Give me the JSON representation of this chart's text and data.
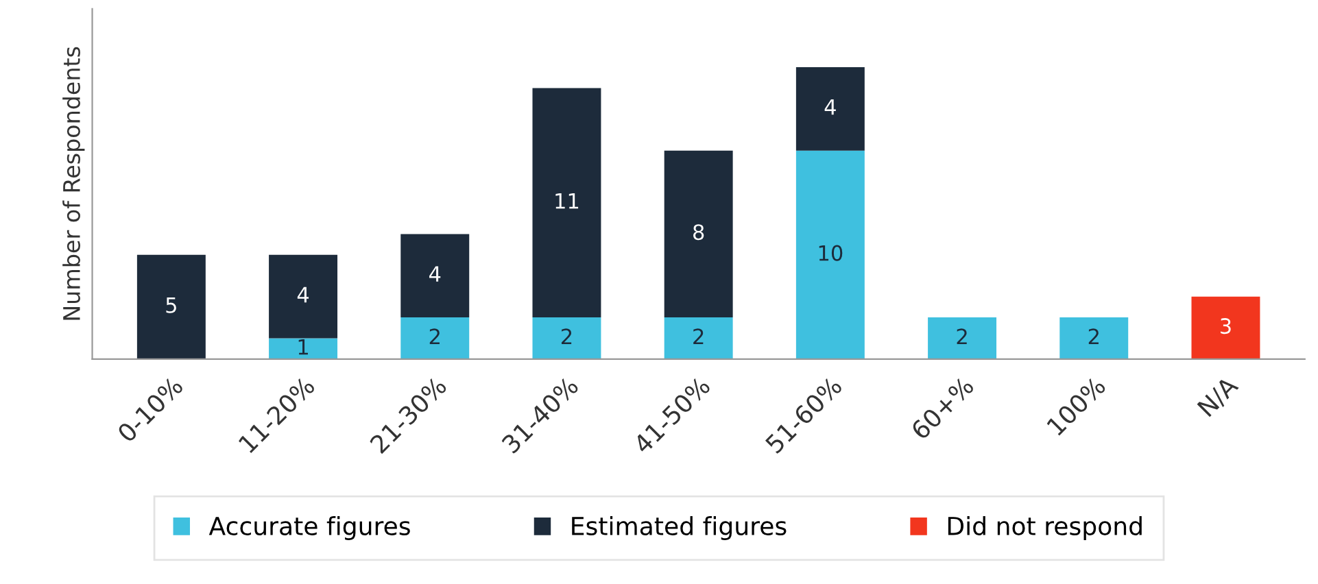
{
  "chart_data": {
    "type": "bar",
    "stacked": true,
    "ylabel": "Number of Respondents",
    "categories": [
      "0-10%",
      "11-20%",
      "21-30%",
      "31-40%",
      "41-50%",
      "51-60%",
      "60+%",
      "100%",
      "N/A"
    ],
    "series": [
      {
        "name": "Accurate figures",
        "color": "#3fc0df",
        "values": [
          null,
          1,
          2,
          2,
          2,
          10,
          2,
          2,
          null
        ]
      },
      {
        "name": "Estimated figures",
        "color": "#1d2b3b",
        "values": [
          5,
          4,
          4,
          11,
          8,
          4,
          null,
          null,
          null
        ]
      },
      {
        "name": "Did not respond",
        "color": "#f2361e",
        "values": [
          null,
          null,
          null,
          null,
          null,
          null,
          null,
          null,
          3
        ]
      }
    ],
    "data_labels": true,
    "legend": "bottom",
    "grid": false
  }
}
